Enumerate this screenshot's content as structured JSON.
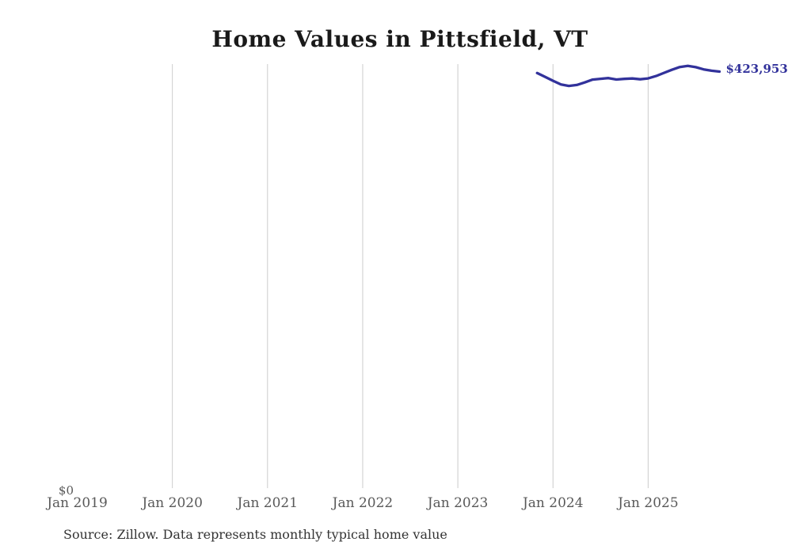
{
  "header": {
    "title": "Home Values in Pittsfield, VT"
  },
  "footer": {
    "source_text": "Source: Zillow. Data represents monthly typical home value"
  },
  "chart_data": {
    "type": "line",
    "title": "Home Values in Pittsfield, VT",
    "xlabel": "",
    "ylabel": "",
    "ylim": [
      0,
      440000
    ],
    "grid": "vertical-only",
    "legend_position": "none",
    "grid_color": "#cccccc",
    "axis_label_color": "#595959",
    "y_axis": {
      "zero_label": "$0",
      "min": 0
    },
    "x_ticks": [
      {
        "label": "Jan 2019",
        "month": "2019-01",
        "gridline": false
      },
      {
        "label": "Jan 2020",
        "month": "2020-01",
        "gridline": true
      },
      {
        "label": "Jan 2021",
        "month": "2021-01",
        "gridline": true
      },
      {
        "label": "Jan 2022",
        "month": "2022-01",
        "gridline": true
      },
      {
        "label": "Jan 2023",
        "month": "2023-01",
        "gridline": true
      },
      {
        "label": "Jan 2024",
        "month": "2024-01",
        "gridline": true
      },
      {
        "label": "Jan 2025",
        "month": "2025-01",
        "gridline": true
      }
    ],
    "end_label": "$423,953",
    "series": [
      {
        "name": "Monthly typical home value",
        "color": "#32329b",
        "months": [
          "2023-11",
          "2023-12",
          "2024-01",
          "2024-02",
          "2024-03",
          "2024-04",
          "2024-05",
          "2024-06",
          "2024-07",
          "2024-08",
          "2024-09",
          "2024-10",
          "2024-11",
          "2024-12",
          "2025-01",
          "2025-02",
          "2025-03",
          "2025-04",
          "2025-05",
          "2025-06",
          "2025-07",
          "2025-08",
          "2025-09",
          "2025-10"
        ],
        "values": [
          422500,
          418600,
          414600,
          410900,
          409300,
          410300,
          412900,
          415800,
          416600,
          417300,
          415900,
          416500,
          416900,
          416100,
          417000,
          419400,
          422600,
          425800,
          428600,
          429700,
          428400,
          426200,
          424800,
          423953
        ]
      }
    ]
  }
}
